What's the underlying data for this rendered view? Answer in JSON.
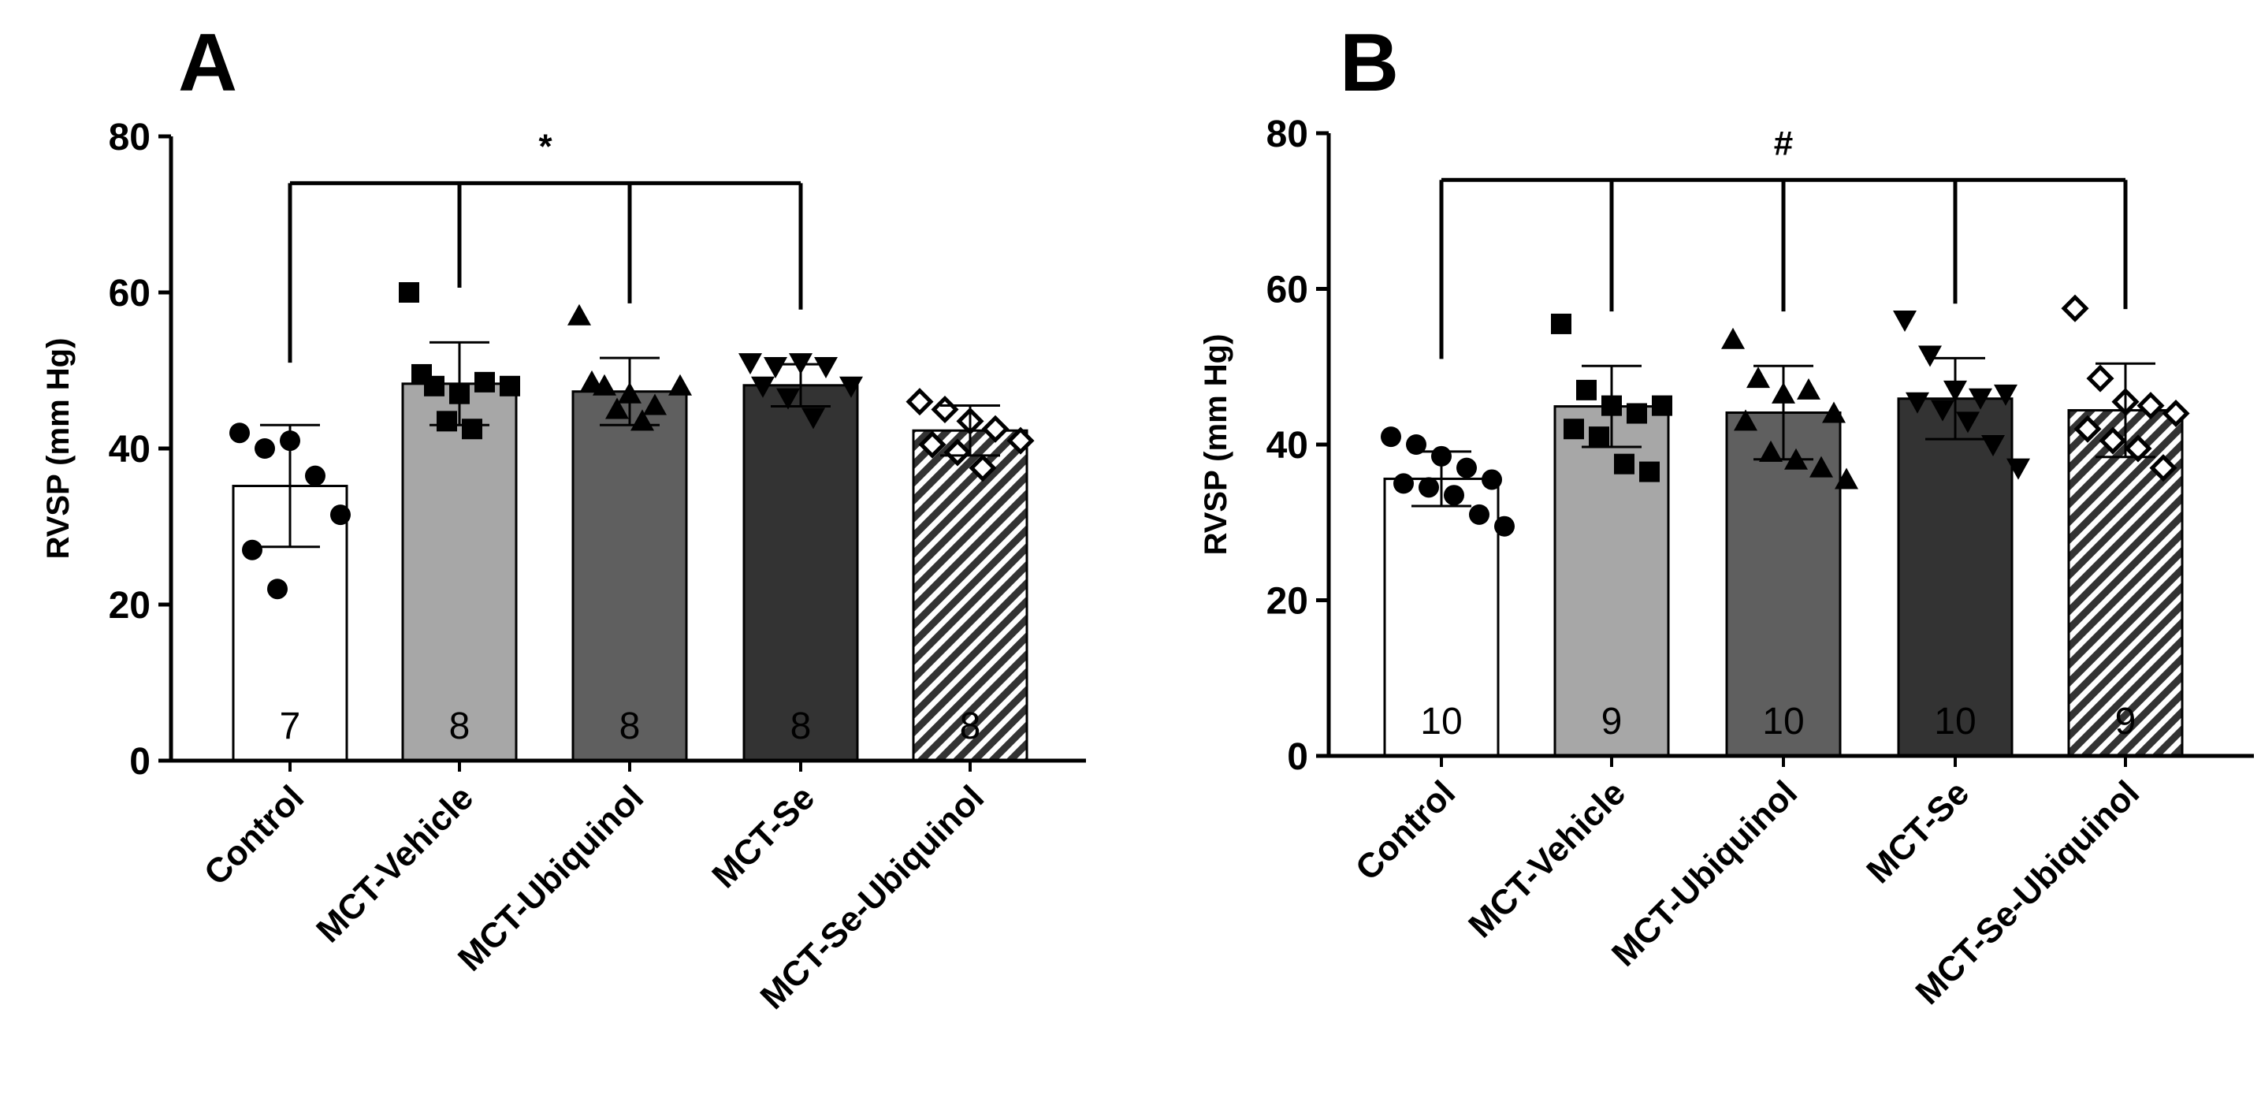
{
  "chart_data": [
    {
      "type": "bar",
      "panel": "A",
      "title": "",
      "xlabel": "",
      "ylabel": "RVSP (mm Hg)",
      "ylim": [
        0,
        80
      ],
      "yticks": [
        0,
        20,
        40,
        60,
        80
      ],
      "categories": [
        "Control",
        "MCT-Vehicle",
        "MCT-Ubiquinol",
        "MCT-Se",
        "MCT-Se-Ubiquinol"
      ],
      "values": [
        35.2,
        48.3,
        47.3,
        48.1,
        42.3
      ],
      "sd": [
        7.8,
        5.3,
        4.3,
        2.7,
        3.2
      ],
      "n": [
        "7",
        "8",
        "8",
        "8",
        "8"
      ],
      "points": [
        [
          42.0,
          40.0,
          41.0,
          36.5,
          31.5,
          27.0,
          22.0
        ],
        [
          60.0,
          48.0,
          47.0,
          48.5,
          48.0,
          49.5,
          43.5,
          42.5
        ],
        [
          57.0,
          48.0,
          47.0,
          45.5,
          48.0,
          48.5,
          45.0,
          43.5
        ],
        [
          51.0,
          50.5,
          51.0,
          50.5,
          48.0,
          48.0,
          46.5,
          44.0
        ],
        [
          46.0,
          45.0,
          43.5,
          42.5,
          41.0,
          40.5,
          39.5,
          37.5
        ]
      ],
      "significance": {
        "symbol": "*",
        "reference": 0,
        "targets": [
          1,
          2,
          3
        ],
        "y": 74
      }
    },
    {
      "type": "bar",
      "panel": "B",
      "title": "",
      "xlabel": "",
      "ylabel": "RVSP (mm Hg)",
      "ylim": [
        0,
        80
      ],
      "yticks": [
        0,
        20,
        40,
        60,
        80
      ],
      "categories": [
        "Control",
        "MCT-Vehicle",
        "MCT-Ubiquinol",
        "MCT-Se",
        "MCT-Se-Ubiquinol"
      ],
      "values": [
        35.6,
        44.9,
        44.1,
        45.9,
        44.4
      ],
      "sd": [
        3.5,
        5.2,
        6.0,
        5.2,
        6.0
      ],
      "n": [
        "10",
        "9",
        "10",
        "10",
        "9"
      ],
      "points": [
        [
          41.0,
          40.0,
          38.5,
          37.0,
          35.5,
          35.0,
          34.5,
          33.5,
          31.0,
          29.5
        ],
        [
          55.5,
          47.0,
          45.0,
          44.0,
          45.0,
          42.0,
          41.0,
          37.5,
          36.5
        ],
        [
          53.5,
          48.5,
          46.5,
          47.0,
          44.0,
          43.0,
          39.0,
          38.0,
          37.0,
          35.5
        ],
        [
          56.0,
          51.5,
          47.0,
          46.0,
          46.5,
          45.5,
          44.5,
          43.0,
          40.0,
          37.0
        ],
        [
          57.5,
          48.5,
          45.5,
          45.0,
          44.0,
          42.0,
          40.5,
          39.5,
          37.0
        ]
      ],
      "significance": {
        "symbol": "#",
        "reference": 0,
        "targets": [
          1,
          2,
          3,
          4
        ],
        "y": 74
      }
    }
  ]
}
